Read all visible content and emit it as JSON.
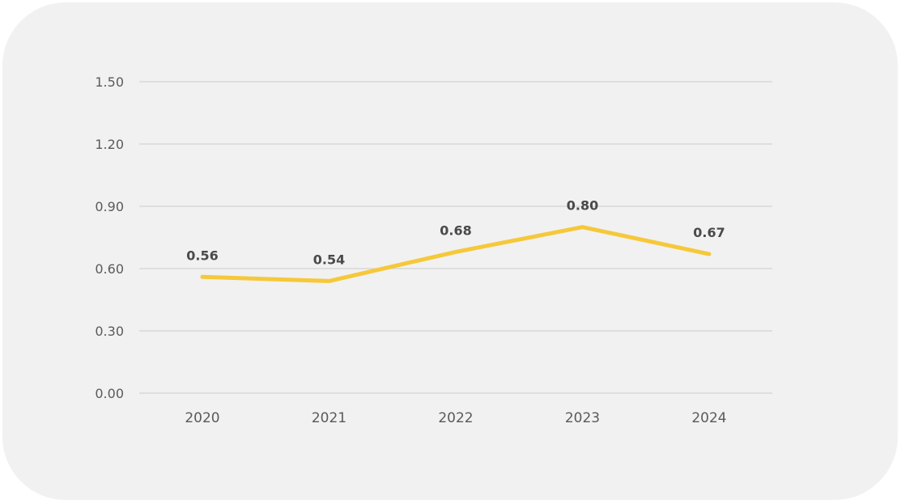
{
  "chart_data": {
    "type": "line",
    "title": "",
    "xlabel": "",
    "ylabel": "",
    "categories": [
      "2020",
      "2021",
      "2022",
      "2023",
      "2024"
    ],
    "series": [
      {
        "values": [
          0.56,
          0.54,
          0.68,
          0.8,
          0.67
        ],
        "data_labels": [
          "0.56",
          "0.54",
          "0.68",
          "0.80",
          "0.67"
        ],
        "color": "#f6c83a"
      }
    ],
    "ylim": [
      0,
      1.5
    ],
    "yticks": [
      0,
      0.3,
      0.6,
      0.9,
      1.2,
      1.5
    ],
    "ytick_labels": [
      "0.00",
      "0.30",
      "0.60",
      "0.90",
      "1.20",
      "1.50"
    ],
    "grid": true,
    "legend": "none",
    "background_color": "#f1f1f1"
  }
}
